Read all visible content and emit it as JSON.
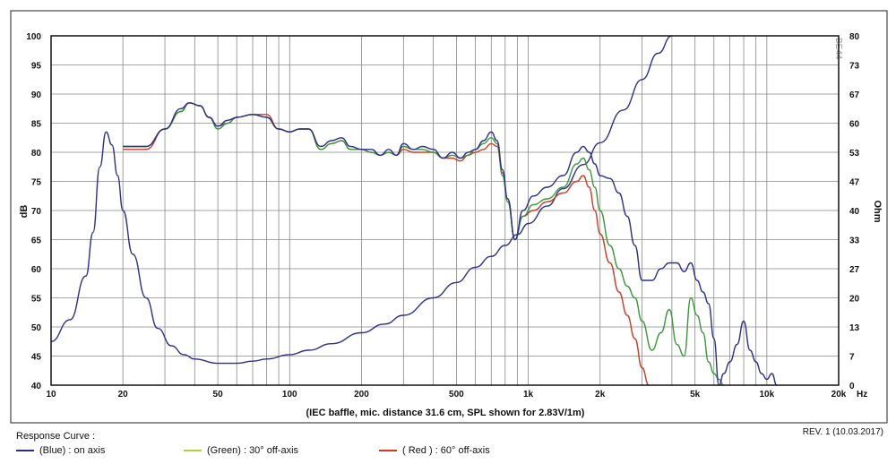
{
  "chart_data": {
    "type": "line",
    "xlabel": "(IEC baffle, mic. distance 31.6 cm, SPL shown for 2.83V/1m)",
    "ylabel": "dB",
    "y2label": "Ohm",
    "x_scale": "log",
    "xlim": [
      10,
      20000
    ],
    "ylim": [
      40,
      100
    ],
    "y2lim": [
      0,
      80
    ],
    "x_tick_values": [
      10,
      20,
      50,
      100,
      200,
      500,
      1000,
      2000,
      5000,
      10000,
      20000
    ],
    "x_tick_labels": [
      "10",
      "20",
      "50",
      "100",
      "200",
      "500",
      "1k",
      "2k",
      "5k",
      "10k",
      "20k"
    ],
    "x_unit_label": "Hz",
    "y_ticks": [
      40,
      45,
      50,
      55,
      60,
      65,
      70,
      75,
      80,
      85,
      90,
      95,
      100
    ],
    "y2_ticks": [
      "0",
      "7",
      "13",
      "20",
      "27",
      "33",
      "40",
      "47",
      "53",
      "60",
      "67",
      "73",
      "80"
    ],
    "grid": true,
    "series": [
      {
        "name": "on axis",
        "color": "#2b2f8e",
        "axis": "left",
        "x": [
          20,
          25,
          30,
          35,
          38,
          42,
          46,
          50,
          55,
          60,
          70,
          80,
          90,
          100,
          110,
          120,
          135,
          150,
          165,
          180,
          200,
          220,
          240,
          260,
          280,
          300,
          330,
          360,
          400,
          440,
          480,
          520,
          560,
          600,
          650,
          700,
          740,
          780,
          820,
          880,
          950,
          1050,
          1200,
          1400,
          1600,
          1700,
          1800,
          1900,
          2000,
          2200,
          2400,
          2600,
          2800,
          3000,
          3300,
          3600,
          3900,
          4200,
          4500,
          4800,
          5100,
          5400,
          5700,
          6000,
          6300,
          6600,
          7000,
          7500,
          8000,
          8500,
          9000,
          9500,
          10000,
          10500,
          11000
        ],
        "y": [
          81,
          81,
          84,
          87.5,
          88.5,
          88,
          86,
          84.5,
          85.5,
          86,
          86.5,
          86,
          84,
          83.5,
          84,
          84,
          81,
          82,
          82.5,
          81,
          80.5,
          80.5,
          79.5,
          80.5,
          79.5,
          81.5,
          80.5,
          81,
          80.5,
          79,
          80,
          79,
          80,
          80.5,
          82,
          83.5,
          82,
          77,
          72,
          65,
          70,
          72.5,
          74,
          76,
          80,
          81,
          80,
          78,
          76,
          75.5,
          73,
          69,
          64,
          58,
          58,
          60,
          61,
          61,
          59.5,
          61,
          58,
          56,
          54,
          48,
          40,
          42,
          44,
          47,
          51,
          46,
          44,
          42,
          41,
          42,
          40
        ]
      },
      {
        "name": "30° off-axis",
        "color": "#3a9a3a",
        "axis": "left",
        "x": [
          20,
          25,
          30,
          35,
          38,
          42,
          46,
          50,
          55,
          60,
          70,
          80,
          90,
          100,
          110,
          120,
          135,
          150,
          165,
          180,
          200,
          220,
          240,
          260,
          280,
          300,
          330,
          360,
          400,
          440,
          480,
          520,
          560,
          600,
          650,
          700,
          740,
          780,
          820,
          880,
          950,
          1050,
          1200,
          1400,
          1600,
          1700,
          1800,
          1900,
          2000,
          2200,
          2400,
          2600,
          2800,
          3000,
          3300,
          3600,
          3900,
          4200,
          4500,
          4800,
          5100,
          5400,
          5700,
          6000,
          6300,
          6600
        ],
        "y": [
          81,
          81,
          84,
          87,
          88.5,
          88,
          86,
          84,
          85,
          86,
          86.5,
          86,
          84,
          83.5,
          84,
          84,
          80.5,
          81.5,
          82,
          80.5,
          80.5,
          80,
          79.5,
          80,
          79.5,
          81,
          80.5,
          80.5,
          80,
          79,
          79.5,
          79,
          79.5,
          80.5,
          81.5,
          82.5,
          81.5,
          76,
          71.5,
          65,
          69,
          71,
          72,
          74,
          78,
          79,
          77,
          74,
          70,
          64,
          60,
          57,
          55,
          51,
          46,
          49,
          53,
          47,
          45,
          55,
          52,
          49,
          44,
          42,
          41,
          40
        ]
      },
      {
        "name": "60° off-axis",
        "color": "#d03a22",
        "axis": "left",
        "x": [
          20,
          25,
          30,
          35,
          38,
          42,
          46,
          50,
          55,
          60,
          70,
          80,
          90,
          100,
          110,
          120,
          135,
          150,
          165,
          180,
          200,
          220,
          240,
          260,
          280,
          300,
          330,
          360,
          400,
          440,
          480,
          520,
          560,
          600,
          650,
          700,
          740,
          780,
          820,
          880,
          950,
          1050,
          1200,
          1400,
          1600,
          1700,
          1800,
          1900,
          2000,
          2200,
          2400,
          2600,
          2800,
          3000,
          3200
        ],
        "y": [
          80.5,
          80.5,
          84,
          87,
          88.5,
          88,
          86,
          84.5,
          85,
          86,
          86.5,
          86.5,
          84,
          83.5,
          84,
          84,
          80.5,
          81.5,
          82,
          80.5,
          80.5,
          80,
          79.5,
          80,
          79.5,
          80.5,
          80,
          80,
          80,
          79,
          79,
          78.5,
          79.5,
          80,
          80.5,
          81.5,
          81,
          76.5,
          72,
          65,
          69,
          70,
          71.5,
          73,
          75,
          76,
          74,
          70,
          66,
          61,
          56,
          52,
          48,
          43,
          40
        ]
      },
      {
        "name": "Impedance",
        "color": "#2b2f8e",
        "axis": "right",
        "x": [
          10,
          12,
          14,
          15,
          16,
          17,
          18,
          19,
          20,
          22,
          25,
          28,
          32,
          36,
          40,
          50,
          60,
          70,
          80,
          100,
          120,
          150,
          200,
          250,
          300,
          400,
          500,
          600,
          700,
          800,
          900,
          1000,
          1200,
          1400,
          1700,
          2000,
          2500,
          3000,
          3500,
          4000
        ],
        "y": [
          10,
          15,
          25,
          35,
          50,
          58,
          55,
          48,
          40,
          30,
          20,
          13,
          9,
          7,
          6,
          5,
          5,
          5.5,
          6,
          7,
          8,
          9.5,
          12,
          14,
          16,
          20,
          23.5,
          27,
          29.5,
          32,
          34.5,
          37,
          41,
          45,
          50.5,
          55.5,
          63,
          70,
          76,
          80
        ]
      }
    ],
    "legend_title": "Response Curve :",
    "legend_position": "bottom-left"
  },
  "legend": {
    "title": "Response Curve :",
    "items": [
      {
        "color": "#2b2f8e",
        "label": "(Blue)  : on axis"
      },
      {
        "color": "#b6cf3a",
        "label": "(Green) : 30° off-axis"
      },
      {
        "color": "#d03a22",
        "label": "( Red ) : 60° off-axis"
      }
    ]
  },
  "watermark": "BE44",
  "revision": "REV. 1 (10.03.2017)"
}
